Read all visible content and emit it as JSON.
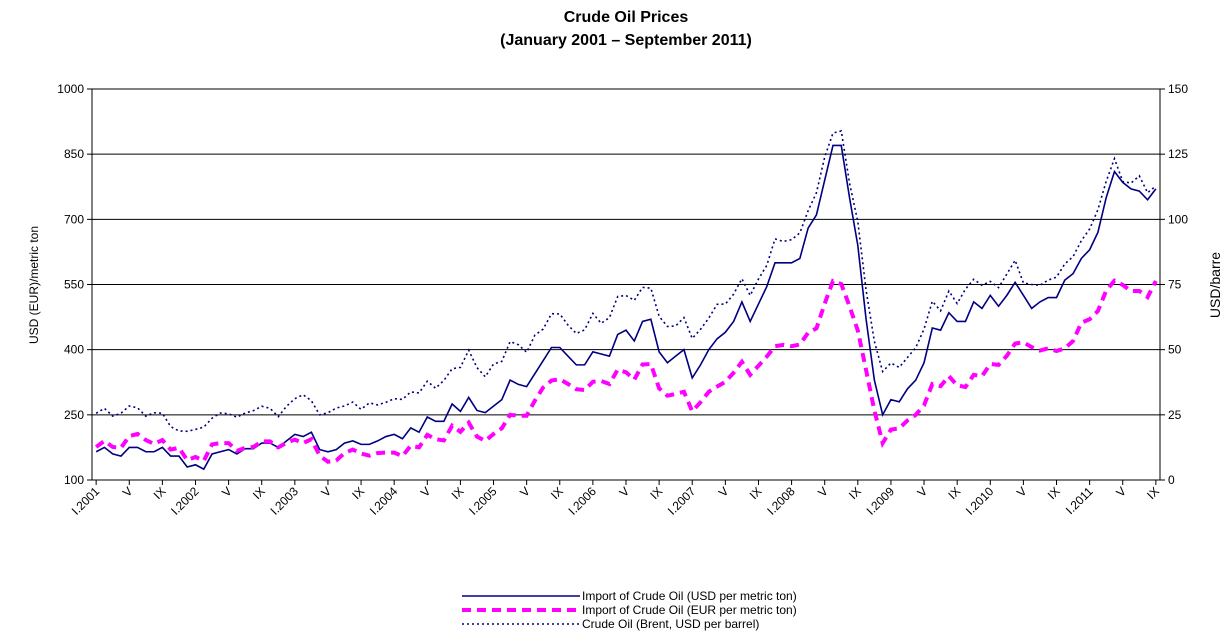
{
  "chart_data": {
    "type": "line",
    "title": "Crude Oil Prices",
    "subtitle": "(January 2001 – September 2011)",
    "y_label": "USD (EUR)/metric ton",
    "y2_label": "USD/barre",
    "ylim": [
      100,
      1000
    ],
    "yticks": [
      100,
      250,
      400,
      550,
      700,
      850,
      1000
    ],
    "y2lim": [
      0,
      150
    ],
    "y2ticks": [
      0,
      25,
      50,
      75,
      100,
      125,
      150
    ],
    "grid": true,
    "legend": "bottom",
    "categories": [
      "I.2001",
      null,
      null,
      null,
      "V",
      null,
      null,
      null,
      "IX",
      null,
      null,
      null,
      "I.2002",
      null,
      null,
      null,
      "V",
      null,
      null,
      null,
      "IX",
      null,
      null,
      null,
      "I.2003",
      null,
      null,
      null,
      "V",
      null,
      null,
      null,
      "IX",
      null,
      null,
      null,
      "I.2004",
      null,
      null,
      null,
      "V",
      null,
      null,
      null,
      "IX",
      null,
      null,
      null,
      "I.2005",
      null,
      null,
      null,
      "V",
      null,
      null,
      null,
      "IX",
      null,
      null,
      null,
      "I.2006",
      null,
      null,
      null,
      "V",
      null,
      null,
      null,
      "IX",
      null,
      null,
      null,
      "I.2007",
      null,
      null,
      null,
      "V",
      null,
      null,
      null,
      "IX",
      null,
      null,
      null,
      "I.2008",
      null,
      null,
      null,
      "V",
      null,
      null,
      null,
      "IX",
      null,
      null,
      null,
      "I.2009",
      null,
      null,
      null,
      "V",
      null,
      null,
      null,
      "IX",
      null,
      null,
      null,
      "I.2010",
      null,
      null,
      null,
      "V",
      null,
      null,
      null,
      "IX",
      null,
      null,
      null,
      "I.2011",
      null,
      null,
      null,
      "V",
      null,
      null,
      null,
      "IX"
    ],
    "series": [
      {
        "name": "Import of Crude Oil (USD per metric ton)",
        "color": "#000080",
        "line_style": "solid",
        "values": [
          165,
          175,
          160,
          155,
          175,
          175,
          165,
          165,
          175,
          155,
          155,
          130,
          135,
          125,
          160,
          165,
          170,
          160,
          172,
          172,
          185,
          185,
          175,
          190,
          205,
          200,
          210,
          170,
          165,
          170,
          185,
          190,
          182,
          182,
          190,
          200,
          205,
          195,
          220,
          210,
          245,
          235,
          235,
          275,
          258,
          290,
          260,
          255,
          270,
          285,
          330,
          320,
          315,
          345,
          375,
          405,
          405,
          385,
          365,
          365,
          395,
          390,
          385,
          435,
          445,
          420,
          465,
          470,
          395,
          370,
          385,
          400,
          335,
          365,
          400,
          425,
          440,
          465,
          510,
          465,
          505,
          545,
          600,
          600,
          600,
          610,
          680,
          710,
          790,
          870,
          870,
          750,
          640,
          470,
          330,
          250,
          285,
          280,
          310,
          330,
          370,
          450,
          445,
          485,
          465,
          465,
          510,
          495,
          525,
          500,
          525,
          555,
          525,
          495,
          510,
          520,
          520,
          560,
          575,
          610,
          630,
          670,
          750,
          810,
          785,
          770,
          765,
          745,
          770
        ]
      },
      {
        "name": "Import of Crude Oil (EUR per metric ton)",
        "color": "#ff00ff",
        "line_style": "dashed",
        "values": [
          176,
          190,
          176,
          174,
          201,
          206,
          192,
          183,
          192,
          170,
          174,
          146,
          153,
          144,
          182,
          185,
          185,
          167,
          174,
          176,
          189,
          189,
          175,
          186,
          193,
          185,
          194,
          156,
          142,
          145,
          162,
          170,
          161,
          156,
          162,
          163,
          163,
          155,
          179,
          175,
          204,
          194,
          191,
          225,
          211,
          232,
          200,
          190,
          206,
          219,
          250,
          248,
          248,
          283,
          313,
          329,
          332,
          321,
          309,
          307,
          326,
          328,
          321,
          354,
          348,
          331,
          366,
          367,
          311,
          294,
          298,
          303,
          258,
          279,
          303,
          315,
          326,
          347,
          372,
          342,
          363,
          384,
          408,
          411,
          408,
          412,
          439,
          449,
          506,
          558,
          551,
          500,
          444,
          353,
          260,
          185,
          216,
          219,
          237,
          250,
          272,
          321,
          316,
          339,
          318,
          314,
          342,
          339,
          367,
          365,
          386,
          414,
          417,
          406,
          398,
          403,
          397,
          403,
          420,
          462,
          470,
          489,
          536,
          559,
          549,
          535,
          535,
          521,
          558
        ]
      },
      {
        "name": "Crude Oil (Brent, USD per barrel)",
        "color": "#000080",
        "line_style": "dotted",
        "axis": "y2",
        "values": [
          25.6,
          27.5,
          24.5,
          25.6,
          28.4,
          27.7,
          24.5,
          25.8,
          25.6,
          20.5,
          18.8,
          18.7,
          19.4,
          20.3,
          23.7,
          25.7,
          25.4,
          24.1,
          25.7,
          26.6,
          28.3,
          27.5,
          24.3,
          28.3,
          31.2,
          32.7,
          30.4,
          25.0,
          25.8,
          27.6,
          28.4,
          29.9,
          27.1,
          29.6,
          28.8,
          29.8,
          31.2,
          30.9,
          33.8,
          33.4,
          37.9,
          35.2,
          38.2,
          42.7,
          43.2,
          49.8,
          43.1,
          39.6,
          44.5,
          45.5,
          53.1,
          51.9,
          49.0,
          55.6,
          57.9,
          63.8,
          63.7,
          59.4,
          56.2,
          57.6,
          63.9,
          60.1,
          62.3,
          70.4,
          70.8,
          68.9,
          73.9,
          73.6,
          62.8,
          58.9,
          59.1,
          62.3,
          54.3,
          57.8,
          62.1,
          67.4,
          67.5,
          71.3,
          77.2,
          70.8,
          77.1,
          82.3,
          92.5,
          91.5,
          92.2,
          94.8,
          103.3,
          110.2,
          123.9,
          133.1,
          133.9,
          113.9,
          99.1,
          72.8,
          53.2,
          41.6,
          44.9,
          43.2,
          47.0,
          50.8,
          57.9,
          68.6,
          64.9,
          72.5,
          67.7,
          73.2,
          77.0,
          74.7,
          76.2,
          73.8,
          79.0,
          84.3,
          75.6,
          75.0,
          74.7,
          76.7,
          77.8,
          82.9,
          85.7,
          91.8,
          96.3,
          103.7,
          114.6,
          123.3,
          114.5,
          113.9,
          116.7,
          110.2,
          112.8
        ]
      }
    ]
  }
}
